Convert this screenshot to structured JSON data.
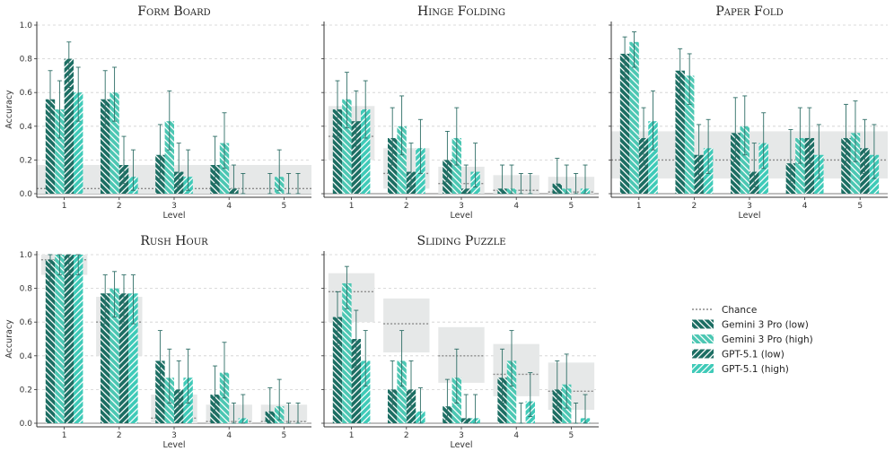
{
  "colors": {
    "gem_low": "#1c6e63",
    "gem_high": "#4cc7b3",
    "gpt_low": "#1c6e63",
    "gpt_high": "#3fcab8",
    "error": "#2e6e66",
    "chance_band": "#e6e8e8",
    "chance_line": "#8a8a8a",
    "grid": "#cfcfcf"
  },
  "legend": {
    "chance": "Chance",
    "series": [
      "Gemini 3 Pro (low)",
      "Gemini 3 Pro (high)",
      "GPT-5.1 (low)",
      "GPT-5.1 (high)"
    ]
  },
  "chart_data": [
    {
      "type": "bar",
      "title": "Form Board",
      "xlabel": "Level",
      "ylabel": "Accuracy",
      "ylim": [
        0,
        1
      ],
      "yticks": [
        "0.0",
        "0.2",
        "0.4",
        "0.6",
        "0.8",
        "1.0"
      ],
      "categories": [
        "1",
        "2",
        "3",
        "4",
        "5"
      ],
      "series": [
        {
          "name": "Gemini 3 Pro (low)",
          "values": [
            0.56,
            0.56,
            0.23,
            0.17,
            0.0
          ],
          "err_low": [
            0.42,
            0.39,
            0.09,
            0.06,
            0.0
          ],
          "err_high": [
            0.73,
            0.73,
            0.41,
            0.34,
            0.12
          ]
        },
        {
          "name": "Gemini 3 Pro (high)",
          "values": [
            0.5,
            0.6,
            0.43,
            0.3,
            0.1
          ],
          "err_low": [
            0.33,
            0.43,
            0.26,
            0.15,
            0.02
          ],
          "err_high": [
            0.67,
            0.75,
            0.61,
            0.48,
            0.26
          ]
        },
        {
          "name": "GPT-5.1 (low)",
          "values": [
            0.8,
            0.17,
            0.13,
            0.03,
            0.0
          ],
          "err_low": [
            0.63,
            0.06,
            0.04,
            0.0,
            0.0
          ],
          "err_high": [
            0.9,
            0.34,
            0.3,
            0.17,
            0.12
          ]
        },
        {
          "name": "GPT-5.1 (high)",
          "values": [
            0.6,
            0.1,
            0.1,
            0.0,
            0.0
          ],
          "err_low": [
            0.43,
            0.02,
            0.02,
            0.0,
            0.0
          ],
          "err_high": [
            0.75,
            0.26,
            0.26,
            0.12,
            0.12
          ]
        }
      ],
      "chance": [
        0.03,
        0.03,
        0.03,
        0.03,
        0.03
      ],
      "chance_band": [
        [
          0.0,
          0.17
        ],
        [
          0.0,
          0.17
        ],
        [
          0.0,
          0.17
        ],
        [
          0.0,
          0.17
        ],
        [
          0.0,
          0.17
        ]
      ],
      "chance_band_mode": "continuous"
    },
    {
      "type": "bar",
      "title": "Hinge Folding",
      "xlabel": "Level",
      "ylabel": "",
      "ylim": [
        0,
        1
      ],
      "yticks": [],
      "categories": [
        "1",
        "2",
        "3",
        "4",
        "5"
      ],
      "series": [
        {
          "name": "Gemini 3 Pro (low)",
          "values": [
            0.5,
            0.33,
            0.2,
            0.03,
            0.06
          ],
          "err_low": [
            0.33,
            0.17,
            0.07,
            0.0,
            0.0
          ],
          "err_high": [
            0.67,
            0.51,
            0.37,
            0.17,
            0.21
          ]
        },
        {
          "name": "Gemini 3 Pro (high)",
          "values": [
            0.56,
            0.4,
            0.33,
            0.03,
            0.03
          ],
          "err_low": [
            0.39,
            0.23,
            0.17,
            0.0,
            0.0
          ],
          "err_high": [
            0.72,
            0.58,
            0.51,
            0.17,
            0.17
          ]
        },
        {
          "name": "GPT-5.1 (low)",
          "values": [
            0.43,
            0.13,
            0.03,
            0.0,
            0.0
          ],
          "err_low": [
            0.26,
            0.04,
            0.0,
            0.0,
            0.0
          ],
          "err_high": [
            0.61,
            0.3,
            0.17,
            0.12,
            0.12
          ]
        },
        {
          "name": "GPT-5.1 (high)",
          "values": [
            0.5,
            0.27,
            0.13,
            0.0,
            0.03
          ],
          "err_low": [
            0.33,
            0.12,
            0.04,
            0.0,
            0.0
          ],
          "err_high": [
            0.67,
            0.44,
            0.3,
            0.12,
            0.17
          ]
        }
      ],
      "chance": [
        0.34,
        0.12,
        0.06,
        0.02,
        0.01
      ],
      "chance_band": [
        [
          0.2,
          0.52
        ],
        [
          0.03,
          0.27
        ],
        [
          0.0,
          0.16
        ],
        [
          0.0,
          0.11
        ],
        [
          0.0,
          0.1
        ]
      ],
      "chance_band_mode": "steps"
    },
    {
      "type": "bar",
      "title": "Paper Fold",
      "xlabel": "Level",
      "ylabel": "",
      "ylim": [
        0,
        1
      ],
      "yticks": [],
      "categories": [
        "1",
        "2",
        "3",
        "4",
        "5"
      ],
      "series": [
        {
          "name": "Gemini 3 Pro (low)",
          "values": [
            0.83,
            0.73,
            0.36,
            0.18,
            0.33
          ],
          "err_low": [
            0.68,
            0.56,
            0.19,
            0.06,
            0.17
          ],
          "err_high": [
            0.93,
            0.86,
            0.57,
            0.38,
            0.53
          ]
        },
        {
          "name": "Gemini 3 Pro (high)",
          "values": [
            0.9,
            0.7,
            0.4,
            0.33,
            0.36
          ],
          "err_low": [
            0.75,
            0.53,
            0.23,
            0.18,
            0.19
          ],
          "err_high": [
            0.96,
            0.83,
            0.58,
            0.51,
            0.55
          ]
        },
        {
          "name": "GPT-5.1 (low)",
          "values": [
            0.33,
            0.23,
            0.13,
            0.33,
            0.27
          ],
          "err_low": [
            0.17,
            0.09,
            0.04,
            0.18,
            0.12
          ],
          "err_high": [
            0.51,
            0.41,
            0.3,
            0.51,
            0.44
          ]
        },
        {
          "name": "GPT-5.1 (high)",
          "values": [
            0.43,
            0.27,
            0.3,
            0.23,
            0.23
          ],
          "err_low": [
            0.26,
            0.12,
            0.15,
            0.09,
            0.09
          ],
          "err_high": [
            0.61,
            0.44,
            0.48,
            0.41,
            0.41
          ]
        }
      ],
      "chance": [
        0.2,
        0.2,
        0.2,
        0.2,
        0.2
      ],
      "chance_band": [
        [
          0.09,
          0.37
        ],
        [
          0.09,
          0.37
        ],
        [
          0.09,
          0.37
        ],
        [
          0.09,
          0.37
        ],
        [
          0.09,
          0.37
        ]
      ],
      "chance_band_mode": "continuous"
    },
    {
      "type": "bar",
      "title": "Rush Hour",
      "xlabel": "Level",
      "ylabel": "Accuracy",
      "ylim": [
        0,
        1
      ],
      "yticks": [
        "0.0",
        "0.2",
        "0.4",
        "0.6",
        "0.8",
        "1.0"
      ],
      "categories": [
        "1",
        "2",
        "3",
        "4",
        "5"
      ],
      "series": [
        {
          "name": "Gemini 3 Pro (low)",
          "values": [
            0.97,
            0.77,
            0.37,
            0.17,
            0.07
          ],
          "err_low": [
            0.84,
            0.59,
            0.22,
            0.06,
            0.0
          ],
          "err_high": [
            1.0,
            0.88,
            0.55,
            0.34,
            0.21
          ]
        },
        {
          "name": "Gemini 3 Pro (high)",
          "values": [
            1.0,
            0.8,
            0.27,
            0.3,
            0.1
          ],
          "err_low": [
            0.88,
            0.63,
            0.12,
            0.15,
            0.02
          ],
          "err_high": [
            1.0,
            0.9,
            0.44,
            0.48,
            0.26
          ]
        },
        {
          "name": "GPT-5.1 (low)",
          "values": [
            1.0,
            0.77,
            0.2,
            0.0,
            0.0
          ],
          "err_low": [
            0.88,
            0.59,
            0.09,
            0.0,
            0.0
          ],
          "err_high": [
            1.0,
            0.88,
            0.37,
            0.12,
            0.12
          ]
        },
        {
          "name": "GPT-5.1 (high)",
          "values": [
            1.0,
            0.77,
            0.27,
            0.03,
            0.0
          ],
          "err_low": [
            0.88,
            0.59,
            0.12,
            0.0,
            0.0
          ],
          "err_high": [
            1.0,
            0.88,
            0.44,
            0.17,
            0.12
          ]
        }
      ],
      "chance": [
        0.97,
        0.6,
        0.03,
        0.01,
        0.01
      ],
      "chance_band": [
        [
          0.88,
          1.0
        ],
        [
          0.4,
          0.75
        ],
        [
          0.0,
          0.17
        ],
        [
          0.0,
          0.11
        ],
        [
          0.0,
          0.11
        ]
      ],
      "chance_band_mode": "steps"
    },
    {
      "type": "bar",
      "title": "Sliding Puzzle",
      "xlabel": "Level",
      "ylabel": "",
      "ylim": [
        0,
        1
      ],
      "yticks": [],
      "categories": [
        "1",
        "2",
        "3",
        "4",
        "5"
      ],
      "series": [
        {
          "name": "Gemini 3 Pro (low)",
          "values": [
            0.63,
            0.2,
            0.1,
            0.27,
            0.2
          ],
          "err_low": [
            0.46,
            0.09,
            0.02,
            0.12,
            0.09
          ],
          "err_high": [
            0.78,
            0.37,
            0.26,
            0.44,
            0.37
          ]
        },
        {
          "name": "Gemini 3 Pro (high)",
          "values": [
            0.83,
            0.37,
            0.27,
            0.37,
            0.23
          ],
          "err_low": [
            0.68,
            0.22,
            0.12,
            0.22,
            0.09
          ],
          "err_high": [
            0.93,
            0.55,
            0.44,
            0.55,
            0.41
          ]
        },
        {
          "name": "GPT-5.1 (low)",
          "values": [
            0.5,
            0.2,
            0.03,
            0.0,
            0.0
          ],
          "err_low": [
            0.33,
            0.09,
            0.0,
            0.0,
            0.0
          ],
          "err_high": [
            0.67,
            0.37,
            0.17,
            0.12,
            0.12
          ]
        },
        {
          "name": "GPT-5.1 (high)",
          "values": [
            0.37,
            0.07,
            0.03,
            0.13,
            0.03
          ],
          "err_low": [
            0.22,
            0.0,
            0.0,
            0.04,
            0.0
          ],
          "err_high": [
            0.55,
            0.21,
            0.17,
            0.3,
            0.17
          ]
        }
      ],
      "chance": [
        0.78,
        0.59,
        0.4,
        0.29,
        0.19
      ],
      "chance_band": [
        [
          0.6,
          0.89
        ],
        [
          0.42,
          0.74
        ],
        [
          0.24,
          0.57
        ],
        [
          0.16,
          0.47
        ],
        [
          0.08,
          0.36
        ]
      ],
      "chance_band_mode": "steps"
    }
  ]
}
